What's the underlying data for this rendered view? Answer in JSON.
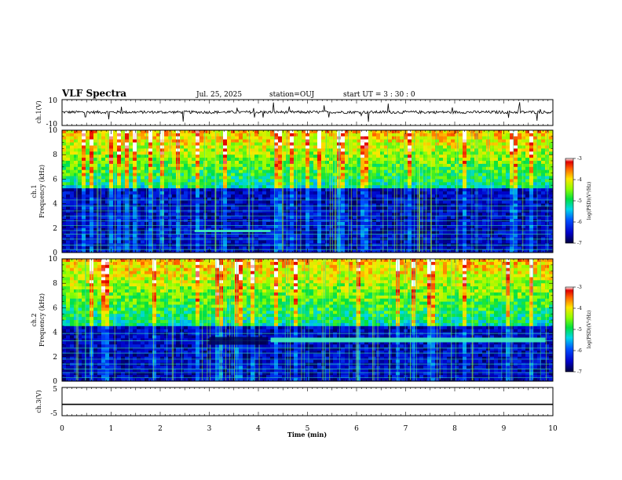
{
  "header": {
    "title": "VLF Spectra",
    "date": "Jul. 25, 2025",
    "station": "station=OUJ",
    "start": "start  UT =  3 : 30 : 0"
  },
  "chart_data": [
    {
      "type": "line",
      "name": "ch1-waveform",
      "ylabel": "ch.1(V)",
      "ylim": [
        -10,
        10
      ],
      "ytick_labels": [
        "10",
        "-10"
      ],
      "xlim": [
        0,
        10
      ],
      "description": "noisy waveform near 0 V with sporadic spikes"
    },
    {
      "type": "heatmap",
      "name": "ch1-spectrogram",
      "ylabel": "ch.1\nFrequency (kHz)",
      "ylim": [
        0,
        10
      ],
      "yticks": [
        0,
        2,
        4,
        6,
        8,
        10
      ],
      "ytick_labels": [
        "0",
        "2",
        "4",
        "6",
        "8",
        "10"
      ],
      "xlim": [
        0,
        10
      ],
      "colorbar": {
        "label": "log(PSD)(V²/Hz)",
        "range": [
          -7,
          -3
        ],
        "ticks": [
          -3,
          -4,
          -5,
          -6,
          -7
        ],
        "tick_labels": [
          "-3",
          "-4",
          "-5",
          "-6",
          "-7"
        ]
      },
      "horizontal_lines_khz": [
        0.25,
        0.6,
        1.1,
        1.5,
        1.8,
        2.2,
        2.6,
        3.0,
        3.4,
        3.8,
        4.3
      ],
      "features": [
        {
          "from_min": 2.7,
          "to_min": 4.25,
          "freq_khz": 1.7,
          "note": "enhanced band"
        }
      ]
    },
    {
      "type": "heatmap",
      "name": "ch2-spectrogram",
      "ylabel": "ch.2\nFrequency (kHz)",
      "ylim": [
        0,
        10
      ],
      "yticks": [
        0,
        2,
        4,
        6,
        8,
        10
      ],
      "ytick_labels": [
        "0",
        "2",
        "4",
        "6",
        "8",
        "10"
      ],
      "xlim": [
        0,
        10
      ],
      "colorbar": {
        "label": "log(PSD)(V²/Hz)",
        "range": [
          -7,
          -3
        ],
        "ticks": [
          -3,
          -4,
          -5,
          -6,
          -7
        ],
        "tick_labels": [
          "-3",
          "-4",
          "-5",
          "-6",
          "-7"
        ]
      },
      "horizontal_lines_khz": [
        0.3,
        0.7,
        1.0,
        1.4,
        1.8,
        2.3,
        2.7,
        3.3,
        3.9
      ],
      "features": [
        {
          "from_min": 4.25,
          "to_min": 9.85,
          "freq_khz": 3.4,
          "note": "strong band"
        },
        {
          "from_min": 3.0,
          "to_min": 4.2,
          "freq_khz": 3.3,
          "note": "dark region"
        }
      ]
    },
    {
      "type": "line",
      "name": "ch3-waveform",
      "ylabel": "ch.3(V)",
      "ylim": [
        -5,
        5
      ],
      "ytick_labels": [
        "5",
        "-5"
      ],
      "value": -1,
      "xlabel": "Time (min)",
      "xlim": [
        0,
        10
      ],
      "xticks": [
        0,
        1,
        2,
        3,
        4,
        5,
        6,
        7,
        8,
        9,
        10
      ],
      "xtick_labels": [
        "0",
        "1",
        "2",
        "3",
        "4",
        "5",
        "6",
        "7",
        "8",
        "9",
        "10"
      ]
    }
  ]
}
